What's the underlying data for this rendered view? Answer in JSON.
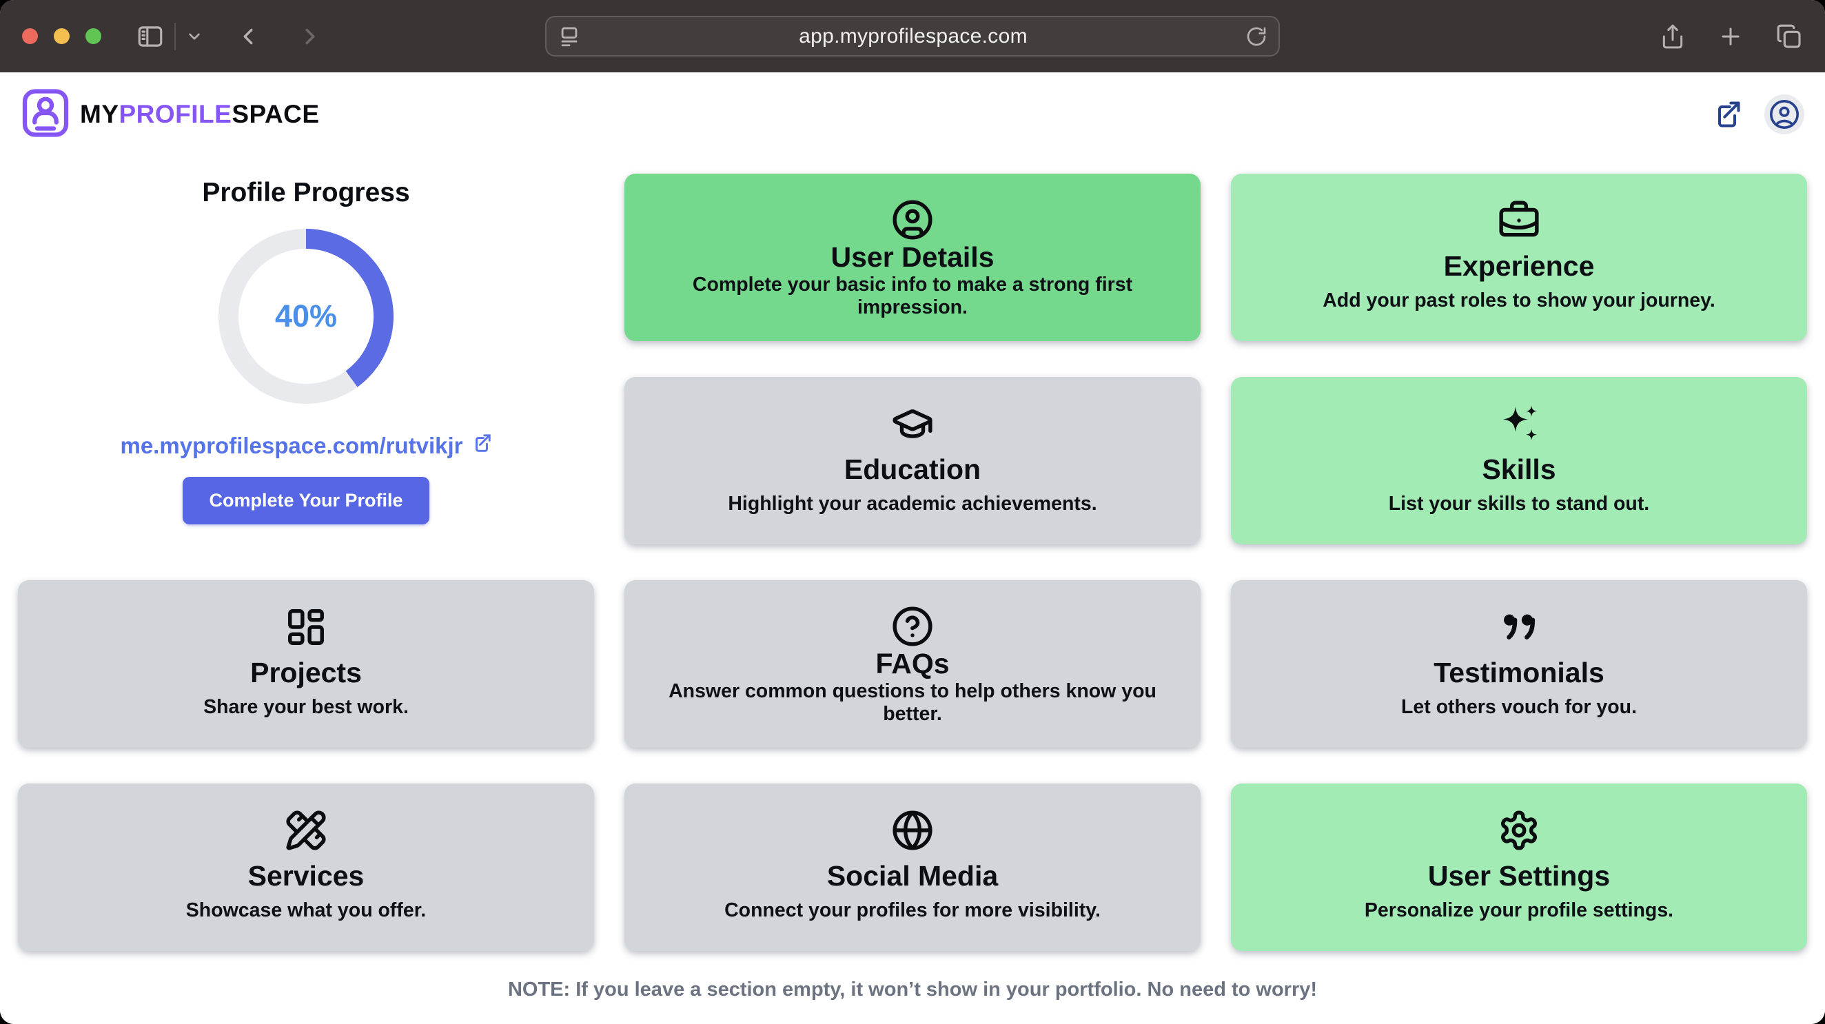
{
  "browser": {
    "url": "app.myprofilespace.com"
  },
  "header": {
    "logo_my": "MY",
    "logo_profile": "PROFILE",
    "logo_space": "SPACE"
  },
  "progress": {
    "title": "Profile Progress",
    "percent": "40%",
    "percent_value": 40,
    "link": "me.myprofilespace.com/rutvikjr",
    "button": "Complete Your Profile"
  },
  "cards": [
    {
      "id": "user-details",
      "title": "User Details",
      "desc": "Complete your basic info to make a strong first impression.",
      "icon": "circle-user-icon",
      "variant": "green"
    },
    {
      "id": "experience",
      "title": "Experience",
      "desc": "Add your past roles to show your journey.",
      "icon": "briefcase-icon",
      "variant": "green-light"
    },
    {
      "id": "education",
      "title": "Education",
      "desc": "Highlight your academic achievements.",
      "icon": "graduation-cap-icon",
      "variant": "gray"
    },
    {
      "id": "skills",
      "title": "Skills",
      "desc": "List your skills to stand out.",
      "icon": "sparkles-icon",
      "variant": "green-light"
    },
    {
      "id": "projects",
      "title": "Projects",
      "desc": "Share your best work.",
      "icon": "layout-dashboard-icon",
      "variant": "gray"
    },
    {
      "id": "faqs",
      "title": "FAQs",
      "desc": "Answer common questions to help others know you better.",
      "icon": "circle-help-icon",
      "variant": "gray"
    },
    {
      "id": "testimonials",
      "title": "Testimonials",
      "desc": "Let others vouch for you.",
      "icon": "quote-icon",
      "variant": "gray"
    },
    {
      "id": "services",
      "title": "Services",
      "desc": "Showcase what you offer.",
      "icon": "pencil-ruler-icon",
      "variant": "gray"
    },
    {
      "id": "social-media",
      "title": "Social Media",
      "desc": "Connect your profiles for more visibility.",
      "icon": "globe-icon",
      "variant": "gray"
    },
    {
      "id": "user-settings",
      "title": "User Settings",
      "desc": "Personalize your profile settings.",
      "icon": "gear-icon",
      "variant": "green-light"
    }
  ],
  "note": "NOTE: If you leave a section empty, it won’t show in your portfolio. No need to worry!",
  "colors": {
    "accent_purple": "#8655f5",
    "navy": "#27418e",
    "ring_blue": "#5b6be4",
    "track_gray": "#e9eaee",
    "percent_blue": "#4a90e8",
    "link_blue": "#5673e8",
    "button_blue": "#5666e4",
    "green_dark": "#74d98c",
    "green_light": "#a2ebb4",
    "gray_card": "#d2d5da",
    "note_gray": "#6b7280",
    "chrome_bg": "#3a3435"
  }
}
